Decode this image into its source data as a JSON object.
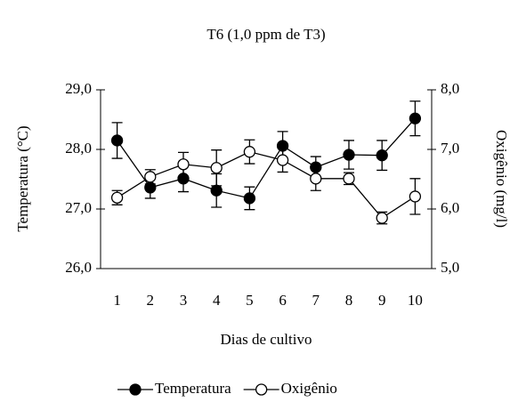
{
  "chart_data": {
    "type": "line",
    "title": "T6 (1,0 ppm de T3)",
    "xlabel": "Dias de cultivo",
    "ylabel": "Temperatura (°C)",
    "y2label": "Oxigênio (mg/l)",
    "categories": [
      "1",
      "2",
      "3",
      "4",
      "5",
      "6",
      "7",
      "8",
      "9",
      "10"
    ],
    "series": [
      {
        "name": "Temperatura",
        "color": "#000000",
        "marker": "filled",
        "values": [
          28.15,
          27.36,
          27.51,
          27.31,
          27.18,
          28.06,
          27.7,
          27.91,
          27.9,
          28.52
        ],
        "errors": [
          0.3,
          0.18,
          0.22,
          0.28,
          0.19,
          0.24,
          0.18,
          0.24,
          0.25,
          0.29
        ]
      },
      {
        "name": "Oxigênio",
        "color": "#000000",
        "marker": "open",
        "axis": "y2",
        "values": [
          6.19,
          6.54,
          6.75,
          6.69,
          6.96,
          6.82,
          6.51,
          6.51,
          5.85,
          6.21
        ],
        "errors": [
          0.12,
          0.12,
          0.2,
          0.3,
          0.2,
          0.2,
          0.2,
          0.1,
          0.1,
          0.3
        ]
      }
    ],
    "ylim": [
      26,
      29
    ],
    "yticks": [
      {
        "value": 26,
        "label": "26,0"
      },
      {
        "value": 27,
        "label": "27,0"
      },
      {
        "value": 28,
        "label": "28,0"
      },
      {
        "value": 29,
        "label": "29,0"
      }
    ],
    "y2lim": [
      5,
      8
    ],
    "y2ticks": [
      {
        "value": 5,
        "label": "5,0"
      },
      {
        "value": 6,
        "label": "6,0"
      },
      {
        "value": 7,
        "label": "7,0"
      },
      {
        "value": 8,
        "label": "8,0"
      }
    ],
    "legend": "bottom"
  }
}
